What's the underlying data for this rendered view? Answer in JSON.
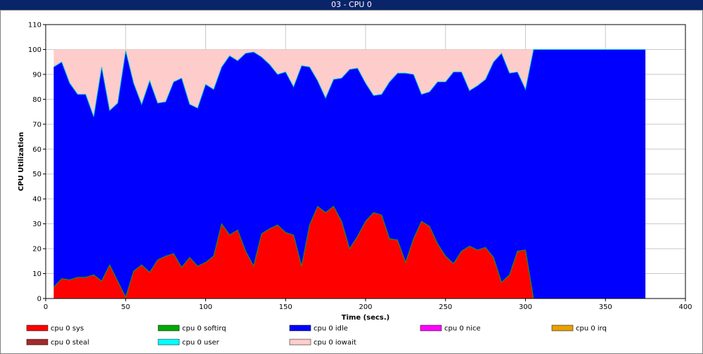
{
  "window": {
    "title": "03 - CPU 0"
  },
  "chart_data": {
    "type": "area",
    "title": "03 - CPU 0",
    "xlabel": "Time (secs.)",
    "ylabel": "CPU Utilization",
    "xlim": [
      0,
      400
    ],
    "ylim": [
      0,
      110
    ],
    "x_ticks": [
      "0",
      "50",
      "100",
      "150",
      "200",
      "250",
      "300",
      "350",
      "400"
    ],
    "y_ticks": [
      "0",
      "10",
      "20",
      "30",
      "40",
      "50",
      "60",
      "70",
      "80",
      "90",
      "100",
      "110"
    ],
    "grid": true,
    "legend_position": "bottom",
    "x": [
      5,
      10,
      15,
      20,
      25,
      30,
      35,
      40,
      45,
      50,
      55,
      60,
      65,
      70,
      75,
      80,
      85,
      90,
      95,
      100,
      105,
      110,
      115,
      120,
      125,
      130,
      135,
      140,
      145,
      150,
      155,
      160,
      165,
      170,
      175,
      180,
      185,
      190,
      195,
      200,
      205,
      210,
      215,
      220,
      225,
      230,
      235,
      240,
      245,
      250,
      255,
      260,
      265,
      270,
      275,
      280,
      285,
      290,
      295,
      300,
      305,
      310,
      315,
      320,
      325,
      330,
      335,
      340,
      345,
      350,
      355,
      360,
      365,
      370,
      375
    ],
    "series": [
      {
        "name": "cpu 0 sys",
        "color": "#ff0000",
        "values": [
          4.5,
          8,
          7.5,
          8.5,
          8.5,
          9.5,
          7,
          13.5,
          7,
          0.5,
          11,
          13.5,
          10.5,
          15.5,
          17,
          18,
          12.5,
          16.5,
          13,
          14.5,
          17,
          30,
          25.5,
          27.5,
          19,
          13,
          26,
          28,
          29.5,
          26.5,
          25.5,
          13,
          29.5,
          37,
          34.5,
          37,
          31,
          20,
          25,
          31,
          34.5,
          33.5,
          24,
          23.5,
          14.5,
          24,
          31,
          29,
          22,
          17,
          14,
          19,
          21,
          19.5,
          20.5,
          16.5,
          6.5,
          9.5,
          19,
          19.5,
          0,
          0,
          0,
          0,
          0,
          0,
          0,
          0,
          0,
          0,
          0,
          0,
          0,
          0,
          0
        ]
      },
      {
        "name": "cpu 0 softirq",
        "color": "#00aa00",
        "values": [
          0,
          0,
          0,
          0,
          0,
          0,
          0,
          0,
          0,
          0,
          0,
          0,
          0,
          0,
          0,
          0,
          0,
          0,
          0,
          0,
          0,
          0,
          0,
          0,
          0,
          0,
          0,
          0,
          0,
          0,
          0,
          0,
          0,
          0,
          0,
          0,
          0,
          0,
          0,
          0,
          0,
          0,
          0,
          0,
          0,
          0,
          0,
          0,
          0,
          0,
          0,
          0,
          0,
          0,
          0,
          0,
          0,
          0,
          0,
          0,
          0,
          0,
          0,
          0,
          0,
          0,
          0,
          0,
          0,
          0,
          0,
          0,
          0,
          0,
          0
        ]
      },
      {
        "name": "cpu 0 idle",
        "color": "#0000ff",
        "values": [
          88.5,
          87,
          79,
          73.5,
          73.5,
          63.5,
          86,
          62,
          71.5,
          99,
          75.5,
          64.5,
          77,
          63,
          62,
          69,
          76,
          61.5,
          63.5,
          71.5,
          67,
          63,
          72,
          68,
          79.5,
          86,
          71,
          66,
          60.5,
          64.5,
          59.5,
          80.5,
          63.5,
          50.5,
          46,
          51,
          57.5,
          72,
          67.5,
          55.5,
          47,
          48.5,
          63,
          67,
          76,
          66,
          51,
          54,
          65,
          70,
          77,
          72,
          62.5,
          66,
          67.5,
          78.5,
          92,
          81,
          72,
          64.5,
          100,
          100,
          100,
          100,
          100,
          100,
          100,
          100,
          100,
          100,
          100,
          100,
          100,
          100,
          100
        ]
      },
      {
        "name": "cpu 0 nice",
        "color": "#ff00ff",
        "values": [
          0,
          0,
          0,
          0,
          0,
          0,
          0,
          0,
          0,
          0,
          0,
          0,
          0,
          0,
          0,
          0,
          0,
          0,
          0,
          0,
          0,
          0,
          0,
          0,
          0,
          0,
          0,
          0,
          0,
          0,
          0,
          0,
          0,
          0,
          0,
          0,
          0,
          0,
          0,
          0,
          0,
          0,
          0,
          0,
          0,
          0,
          0,
          0,
          0,
          0,
          0,
          0,
          0,
          0,
          0,
          0,
          0,
          0,
          0,
          0,
          0,
          0,
          0,
          0,
          0,
          0,
          0,
          0,
          0,
          0,
          0,
          0,
          0,
          0,
          0
        ]
      },
      {
        "name": "cpu 0 irq",
        "color": "#e8a000",
        "values": [
          0,
          0,
          0,
          0,
          0,
          0,
          0,
          0,
          0,
          0,
          0,
          0,
          0,
          0,
          0,
          0,
          0,
          0,
          0,
          0,
          0,
          0,
          0,
          0,
          0,
          0,
          0,
          0,
          0,
          0,
          0,
          0,
          0,
          0,
          0,
          0,
          0,
          0,
          0,
          0,
          0,
          0,
          0,
          0,
          0,
          0,
          0,
          0,
          0,
          0,
          0,
          0,
          0,
          0,
          0,
          0,
          0,
          0,
          0,
          0,
          0,
          0,
          0,
          0,
          0,
          0,
          0,
          0,
          0,
          0,
          0,
          0,
          0,
          0,
          0
        ]
      },
      {
        "name": "cpu 0 steal",
        "color": "#a52a2a",
        "values": [
          0,
          0,
          0,
          0,
          0,
          0,
          0,
          0,
          0,
          0,
          0,
          0,
          0,
          0,
          0,
          0,
          0,
          0,
          0,
          0,
          0,
          0,
          0,
          0,
          0,
          0,
          0,
          0,
          0,
          0,
          0,
          0,
          0,
          0,
          0,
          0,
          0,
          0,
          0,
          0,
          0,
          0,
          0,
          0,
          0,
          0,
          0,
          0,
          0,
          0,
          0,
          0,
          0,
          0,
          0,
          0,
          0,
          0,
          0,
          0,
          0,
          0,
          0,
          0,
          0,
          0,
          0,
          0,
          0,
          0,
          0,
          0,
          0,
          0,
          0
        ]
      },
      {
        "name": "cpu 0 user",
        "color": "#00ffff",
        "values": [
          0,
          0,
          0,
          0,
          0,
          0,
          0,
          0,
          0,
          0,
          0,
          0,
          0,
          0,
          0,
          0,
          0,
          0,
          0,
          0,
          0,
          0,
          0,
          0,
          0,
          0,
          0,
          0,
          0,
          0,
          0,
          0,
          0,
          0,
          0,
          0,
          0,
          0,
          0,
          0,
          0,
          0,
          0,
          0,
          0,
          0,
          0,
          0,
          0,
          0,
          0,
          0,
          0,
          0,
          0,
          0,
          0,
          0,
          0,
          0,
          0,
          0,
          0,
          0,
          0,
          0,
          0,
          0,
          0,
          0,
          0,
          0,
          0,
          0,
          0
        ]
      },
      {
        "name": "cpu 0 iowait",
        "color": "#ffcccc",
        "values": [
          7,
          5,
          13.5,
          18,
          18,
          27,
          7,
          24.5,
          21.5,
          0.5,
          13.5,
          22,
          12.5,
          21.5,
          21,
          13,
          11.5,
          22,
          23.5,
          14,
          16,
          7,
          2.5,
          4.5,
          1.5,
          1,
          3,
          6,
          10,
          9,
          15,
          6.5,
          7,
          12.5,
          19.5,
          12,
          11.5,
          8,
          7.5,
          13.5,
          18.5,
          18,
          13,
          9.5,
          9.5,
          10,
          18,
          17,
          13,
          13,
          9,
          9,
          16.5,
          14.5,
          12,
          5,
          1.5,
          9.5,
          9,
          16,
          0,
          0,
          0,
          0,
          0,
          0,
          0,
          0,
          0,
          0,
          0,
          0,
          0,
          0,
          0
        ]
      }
    ]
  }
}
